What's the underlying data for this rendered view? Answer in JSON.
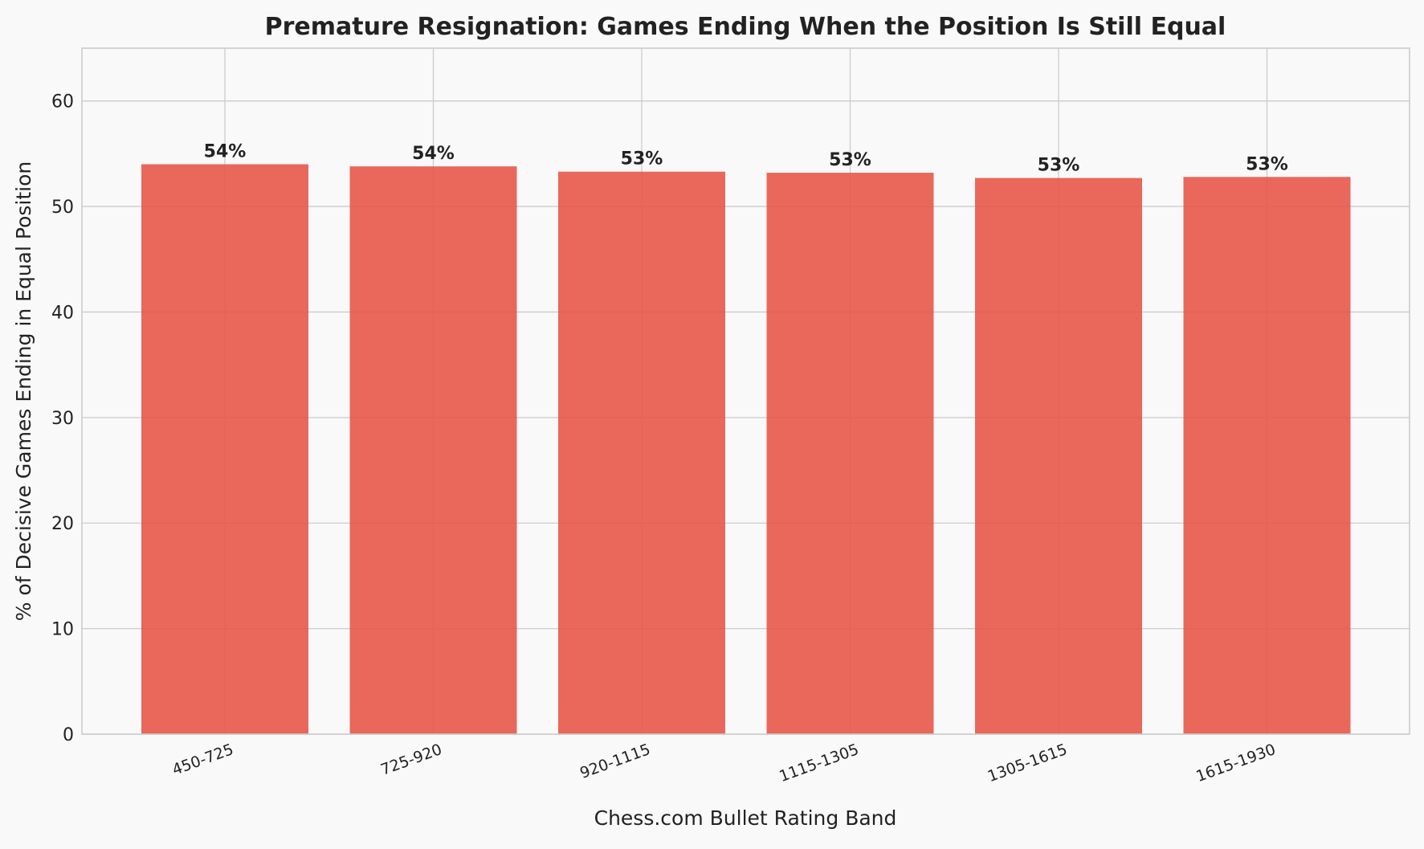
{
  "chart_data": {
    "type": "bar",
    "title": "Premature Resignation: Games Ending When the Position Is Still Equal",
    "xlabel": "Chess.com Bullet Rating Band",
    "ylabel": "% of Decisive Games Ending in Equal Position",
    "categories": [
      "450-725",
      "725-920",
      "920-1115",
      "1115-1305",
      "1305-1615",
      "1615-1930"
    ],
    "values": [
      54.0,
      53.8,
      53.3,
      53.2,
      52.7,
      52.8
    ],
    "data_labels": [
      "54%",
      "54%",
      "53%",
      "53%",
      "53%",
      "53%"
    ],
    "ylim": [
      0,
      65
    ],
    "yticks": [
      0,
      10,
      20,
      30,
      40,
      50,
      60
    ],
    "grid": true,
    "legend": "none",
    "colors": {
      "bar": "#e8574a",
      "background": "#f9f9f9",
      "grid": "#cccccc",
      "text": "#222222"
    }
  }
}
